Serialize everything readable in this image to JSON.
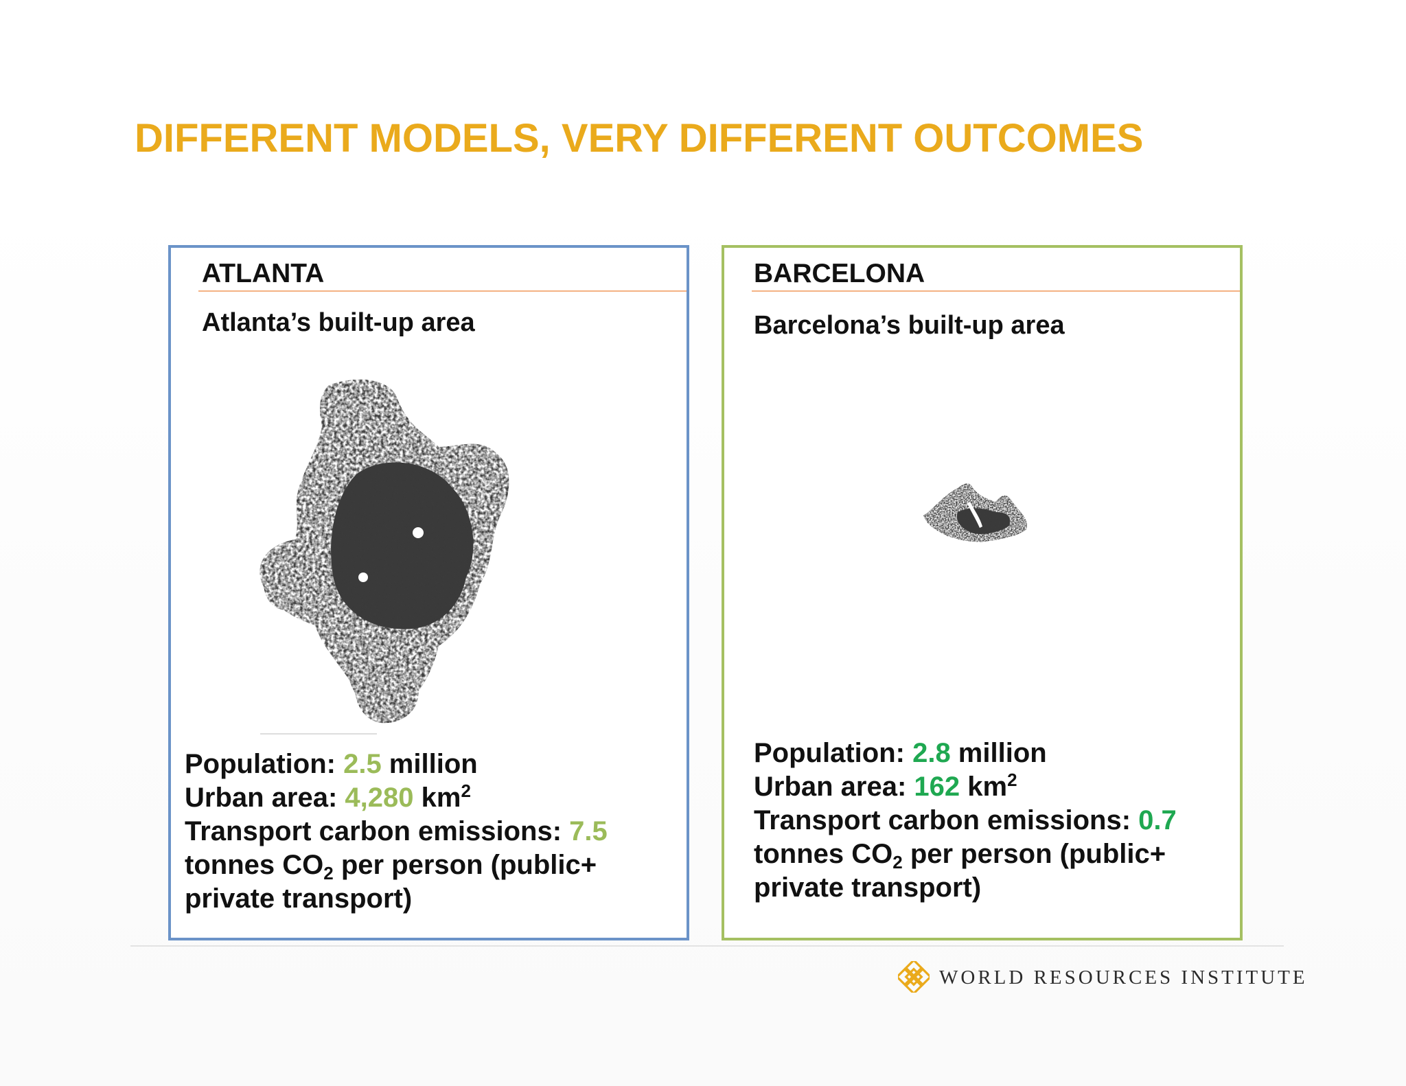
{
  "slide": {
    "title": "DIFFERENT MODELS, VERY DIFFERENT OUTCOMES"
  },
  "panels": {
    "atlanta": {
      "name": "ATLANTA",
      "subtitle": "Atlanta’s built-up area",
      "population_label": "Population: ",
      "population_value": "2.5",
      "population_unit": " million",
      "area_label": "Urban area: ",
      "area_value": "4,280",
      "area_unit": " km",
      "area_sup": "2",
      "emissions_label": "Transport carbon emissions: ",
      "emissions_value": "7.5",
      "emissions_line2_a": "tonnes CO",
      "emissions_sub": "2",
      "emissions_line2_b": " per person (public+",
      "emissions_line3": "private transport)",
      "border_color": "#6B93C8",
      "value_color": "#9BBB59"
    },
    "barcelona": {
      "name": "BARCELONA",
      "subtitle": "Barcelona’s built-up area",
      "population_label": "Population: ",
      "population_value": "2.8",
      "population_unit": " million",
      "area_label": "Urban area: ",
      "area_value": "162",
      "area_unit": " km",
      "area_sup": "2",
      "emissions_label": "Transport carbon emissions: ",
      "emissions_value": "0.7",
      "emissions_line2_a": "tonnes CO",
      "emissions_sub": "2",
      "emissions_line2_b": " per person (public+",
      "emissions_line3": "private transport)",
      "border_color": "#A5C062",
      "value_color": "#1FA851"
    }
  },
  "footer": {
    "organization": "WORLD RESOURCES INSTITUTE",
    "logo_icon": "wri-knot-logo-icon",
    "logo_color": "#EAAA1C"
  },
  "colors": {
    "title": "#EAAA1C",
    "divider": "#F4B183",
    "map_fill": "#3a3a3a"
  }
}
